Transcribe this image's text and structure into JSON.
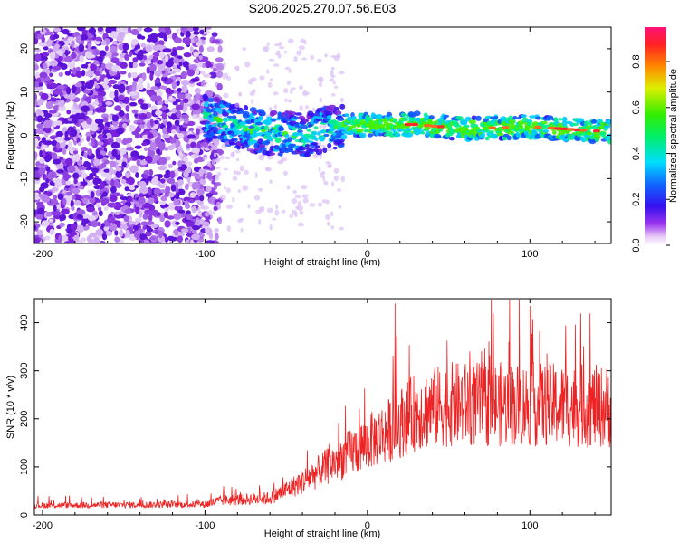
{
  "title": "S206.2025.270.07.56.E03",
  "colors": {
    "snr_line": "#ee2222",
    "axis": "#000000",
    "noise": "#8833dd",
    "ridge": "#ff2a2a"
  },
  "chart_data": [
    {
      "type": "heatmap",
      "name": "spectrogram",
      "xlabel": "Height of straight line (km)",
      "ylabel": "Frequency (Hz)",
      "xlim": [
        -205,
        150
      ],
      "ylim": [
        -25,
        25
      ],
      "x_ticks": [
        -200,
        -100,
        0,
        100
      ],
      "x_tick_labels": [
        "-200",
        "-100",
        "0",
        "100"
      ],
      "y_ticks": [
        -20,
        -10,
        0,
        10,
        20
      ],
      "y_tick_labels": [
        "-20",
        "-10",
        "0",
        "10",
        "20"
      ],
      "ridge_frequency_hz": [
        {
          "height_km": -95,
          "freq_hz": 4
        },
        {
          "height_km": -70,
          "freq_hz": 1
        },
        {
          "height_km": -40,
          "freq_hz": 0
        },
        {
          "height_km": -20,
          "freq_hz": 2
        },
        {
          "height_km": 0,
          "freq_hz": 2.5
        },
        {
          "height_km": 30,
          "freq_hz": 2.5
        },
        {
          "height_km": 60,
          "freq_hz": 1.5
        },
        {
          "height_km": 100,
          "freq_hz": 2
        },
        {
          "height_km": 140,
          "freq_hz": 1
        }
      ],
      "noise_region_km": [
        -205,
        -100
      ],
      "colorbar": {
        "label": "Normalized spectral amplitude",
        "range": [
          0,
          0.95
        ],
        "ticks": [
          0.0,
          0.2,
          0.4,
          0.6,
          0.8
        ],
        "tick_labels": [
          "0.0",
          "0.2",
          "0.4",
          "0.6",
          "0.8"
        ]
      }
    },
    {
      "type": "line",
      "name": "snr",
      "xlabel": "Height of straight line (km)",
      "ylabel": "SNR (10 * v/v)",
      "xlim": [
        -205,
        150
      ],
      "ylim": [
        0,
        450
      ],
      "x_ticks": [
        -200,
        -100,
        0,
        100
      ],
      "x_tick_labels": [
        "-200",
        "-100",
        "0",
        "100"
      ],
      "y_ticks": [
        0,
        100,
        200,
        300,
        400
      ],
      "y_tick_labels": [
        "0",
        "100",
        "200",
        "300",
        "400"
      ],
      "trend": [
        {
          "height_km": -205,
          "snr": 20
        },
        {
          "height_km": -100,
          "snr": 22
        },
        {
          "height_km": -90,
          "snr": 30
        },
        {
          "height_km": -60,
          "snr": 35
        },
        {
          "height_km": -45,
          "snr": 60
        },
        {
          "height_km": -30,
          "snr": 90
        },
        {
          "height_km": -15,
          "snr": 120
        },
        {
          "height_km": 0,
          "snr": 150
        },
        {
          "height_km": 15,
          "snr": 180
        },
        {
          "height_km": 30,
          "snr": 215
        },
        {
          "height_km": 50,
          "snr": 230
        },
        {
          "height_km": 100,
          "snr": 230
        },
        {
          "height_km": 150,
          "snr": 225
        }
      ],
      "noise_amplitude": 0.35,
      "peak": {
        "height_km": 17,
        "snr": 440
      }
    }
  ]
}
